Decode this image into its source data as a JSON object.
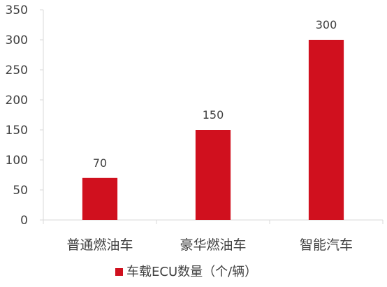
{
  "chart_data": {
    "type": "bar",
    "categories": [
      "普通燃油车",
      "豪华燃油车",
      "智能汽车"
    ],
    "series": [
      {
        "name": "车载ECU数量（个/辆）",
        "values": [
          70,
          150,
          300
        ],
        "color": "#d0101e"
      }
    ],
    "data_labels": [
      "70",
      "150",
      "300"
    ],
    "ylim": [
      0,
      350
    ],
    "yticks": [
      0,
      50,
      100,
      150,
      200,
      250,
      300,
      350
    ],
    "grid": false,
    "legend_position": "bottom",
    "title": "",
    "xlabel": "",
    "ylabel": ""
  }
}
